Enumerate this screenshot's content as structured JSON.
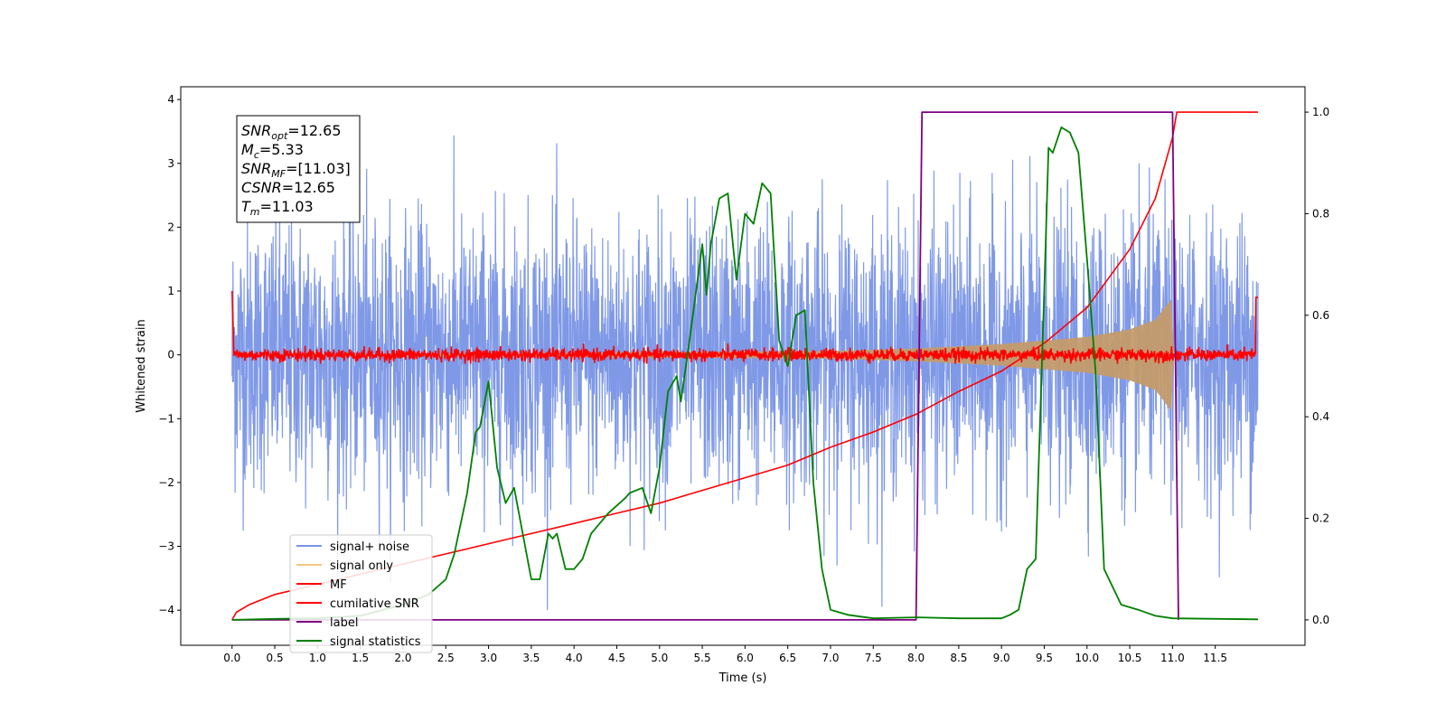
{
  "chart_data": {
    "type": "line",
    "xlabel": "Time (s)",
    "ylabel": "Whitened strain",
    "xlim": [
      -0.6,
      12.55
    ],
    "ylim": [
      -4.55,
      4.2
    ],
    "y2lim": [
      -0.05,
      1.05
    ],
    "grid": false,
    "legend_position": "bottom-left",
    "x_ticks": [
      "0.0",
      "0.5",
      "1.0",
      "1.5",
      "2.0",
      "2.5",
      "3.0",
      "3.5",
      "4.0",
      "4.5",
      "5.0",
      "5.5",
      "6.0",
      "6.5",
      "7.0",
      "7.5",
      "8.0",
      "8.5",
      "9.0",
      "9.5",
      "10.0",
      "10.5",
      "11.0",
      "11.5"
    ],
    "y_ticks": [
      "4",
      "3",
      "2",
      "1",
      "0",
      "−1",
      "−2",
      "−3",
      "−4"
    ],
    "y2_ticks": [
      "1.0",
      "0.8",
      "0.6",
      "0.4",
      "0.2",
      "0.0"
    ],
    "info_box": [
      {
        "sym": "SNR",
        "sub": "opt",
        "val": "=12.65"
      },
      {
        "sym": "M",
        "sub": "c",
        "val": "=5.33"
      },
      {
        "sym": "SNR",
        "sub": "MF",
        "val": "=[11.03]"
      },
      {
        "sym": "CSNR",
        "sub": "",
        "val": "=12.65"
      },
      {
        "sym": "T",
        "sub": "m",
        "val": "=11.03"
      }
    ],
    "series": [
      {
        "name": "signal+ noise",
        "color": "#7894e6",
        "axis": "left",
        "note": "noise band approx ±2.2 with peaks to ±3.8"
      },
      {
        "name": "signal only",
        "color": "#f5c77e",
        "axis": "left",
        "envelope_t": [
          0,
          7.0,
          8.0,
          9.0,
          10.0,
          10.5,
          10.8,
          11.0,
          11.02
        ],
        "envelope_amp": [
          0,
          0.06,
          0.1,
          0.17,
          0.28,
          0.4,
          0.55,
          0.9,
          0
        ]
      },
      {
        "name": "MF",
        "color": "#ff0000",
        "axis": "left",
        "note": "approx 0 ± 0.12, peaks to 1.0 at t=0 and 0.9 at t=12"
      },
      {
        "name": "cumilative SNR",
        "color": "#ff0000",
        "axis": "right",
        "t": [
          0,
          0.05,
          0.2,
          0.5,
          1.0,
          1.5,
          2.0,
          2.5,
          3.0,
          3.5,
          4.0,
          4.5,
          5.0,
          5.5,
          6.0,
          6.5,
          7.0,
          7.5,
          8.0,
          8.5,
          9.0,
          9.5,
          10.0,
          10.5,
          10.8,
          11.0,
          11.05,
          12.0
        ],
        "values": [
          0.0,
          0.015,
          0.03,
          0.05,
          0.07,
          0.09,
          0.11,
          0.13,
          0.15,
          0.17,
          0.19,
          0.21,
          0.23,
          0.255,
          0.28,
          0.305,
          0.34,
          0.37,
          0.405,
          0.45,
          0.49,
          0.545,
          0.615,
          0.73,
          0.83,
          0.95,
          1.0,
          1.0
        ]
      },
      {
        "name": "label",
        "color": "#800080",
        "axis": "right",
        "t": [
          0,
          8.0,
          8.07,
          11.0,
          11.07
        ],
        "values": [
          0,
          0,
          1,
          1,
          0
        ]
      },
      {
        "name": "signal statistics",
        "color": "#008000",
        "axis": "right",
        "t": [
          0,
          0.5,
          1.0,
          1.5,
          2.0,
          2.3,
          2.5,
          2.6,
          2.7,
          2.75,
          2.85,
          2.9,
          3.0,
          3.1,
          3.2,
          3.3,
          3.5,
          3.6,
          3.7,
          3.75,
          3.8,
          3.9,
          4.0,
          4.1,
          4.2,
          4.4,
          4.6,
          4.65,
          4.8,
          4.9,
          5.0,
          5.1,
          5.2,
          5.25,
          5.35,
          5.5,
          5.55,
          5.6,
          5.7,
          5.8,
          5.9,
          6.0,
          6.1,
          6.2,
          6.3,
          6.4,
          6.5,
          6.6,
          6.7,
          6.8,
          6.9,
          7.0,
          7.2,
          7.5,
          8.0,
          8.5,
          9.0,
          9.1,
          9.2,
          9.3,
          9.4,
          9.5,
          9.55,
          9.6,
          9.7,
          9.8,
          9.9,
          10.0,
          10.1,
          10.2,
          10.4,
          10.6,
          10.8,
          11.0,
          12.0
        ],
        "values": [
          0,
          0.002,
          0.003,
          0.008,
          0.03,
          0.05,
          0.08,
          0.13,
          0.21,
          0.25,
          0.37,
          0.38,
          0.47,
          0.3,
          0.23,
          0.26,
          0.08,
          0.08,
          0.17,
          0.16,
          0.17,
          0.1,
          0.1,
          0.12,
          0.17,
          0.21,
          0.24,
          0.25,
          0.26,
          0.21,
          0.3,
          0.45,
          0.48,
          0.43,
          0.55,
          0.74,
          0.64,
          0.74,
          0.83,
          0.84,
          0.67,
          0.8,
          0.78,
          0.86,
          0.84,
          0.55,
          0.5,
          0.6,
          0.61,
          0.27,
          0.1,
          0.02,
          0.01,
          0.003,
          0.005,
          0.003,
          0.003,
          0.01,
          0.02,
          0.1,
          0.12,
          0.65,
          0.93,
          0.92,
          0.97,
          0.96,
          0.92,
          0.71,
          0.49,
          0.1,
          0.03,
          0.02,
          0.008,
          0.003,
          0.001
        ]
      }
    ]
  }
}
